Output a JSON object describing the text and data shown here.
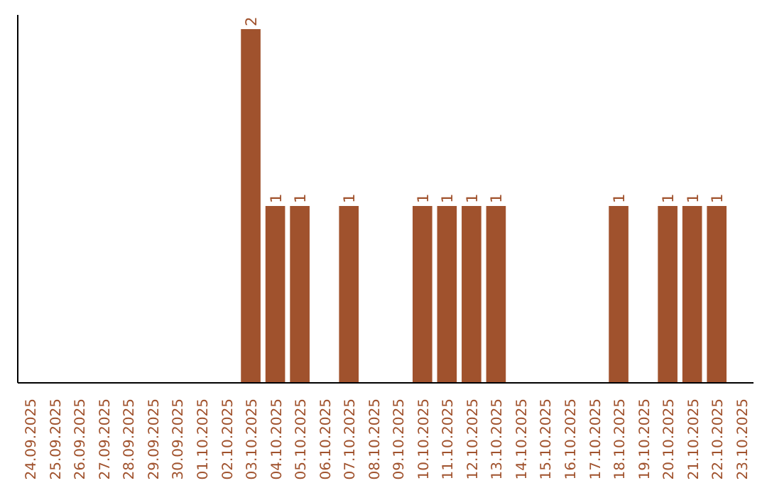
{
  "chart_data": {
    "type": "bar",
    "categories": [
      "24.09.2025",
      "25.09.2025",
      "26.09.2025",
      "27.09.2025",
      "28.09.2025",
      "29.09.2025",
      "30.09.2025",
      "01.10.2025",
      "02.10.2025",
      "03.10.2025",
      "04.10.2025",
      "05.10.2025",
      "06.10.2025",
      "07.10.2025",
      "08.10.2025",
      "09.10.2025",
      "10.10.2025",
      "11.10.2025",
      "12.10.2025",
      "13.10.2025",
      "14.10.2025",
      "15.10.2025",
      "16.10.2025",
      "17.10.2025",
      "18.10.2025",
      "19.10.2025",
      "20.10.2025",
      "21.10.2025",
      "22.10.2025",
      "23.10.2025"
    ],
    "values": [
      0,
      0,
      0,
      0,
      0,
      0,
      0,
      0,
      0,
      2,
      1,
      1,
      0,
      1,
      0,
      0,
      1,
      1,
      1,
      1,
      0,
      0,
      0,
      0,
      1,
      0,
      1,
      1,
      1,
      0
    ],
    "value_labels": [
      null,
      null,
      null,
      null,
      null,
      null,
      null,
      null,
      null,
      "2",
      "1",
      "1",
      null,
      "1",
      null,
      null,
      "1",
      "1",
      "1",
      "1",
      null,
      null,
      null,
      null,
      "1",
      null,
      "1",
      "1",
      "1",
      null
    ],
    "color": "#a0522d",
    "ylim": [
      0,
      2.08
    ],
    "tick_labels": "x",
    "grid": false
  }
}
